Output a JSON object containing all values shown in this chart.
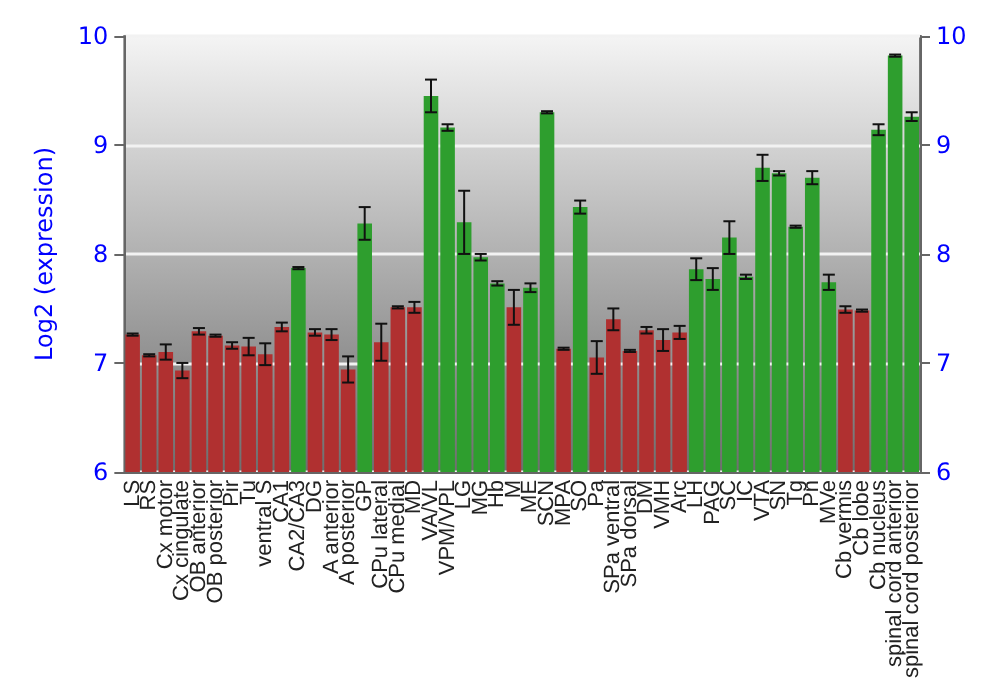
{
  "chart_data": {
    "type": "bar",
    "ylabel": "Log2 (expression)",
    "categories": [
      "LS",
      "RS",
      "Cx motor",
      "Cx cingulate",
      "OB anterior",
      "OB posterior",
      "Pir",
      "Tu",
      "ventral S",
      "CA1",
      "CA2/CA3",
      "DG",
      "A anterior",
      "A posterior",
      "GP",
      "CPu lateral",
      "CPu medial",
      "MD",
      "VA/VL",
      "VPM/VPL",
      "LG",
      "MG",
      "Hb",
      "M",
      "ME",
      "SCN",
      "MPA",
      "SO",
      "Pa",
      "SPa ventral",
      "SPa dorsal",
      "DM",
      "VMH",
      "Arc",
      "LH",
      "PAG",
      "SC",
      "IC",
      "VTA",
      "SN",
      "Tg",
      "Pn",
      "MVe",
      "Cb vermis",
      "Cb lobe",
      "Cb nucleus",
      "spinal cord anterior",
      "spinal cord posterior"
    ],
    "values": [
      7.26,
      7.07,
      7.1,
      6.93,
      7.29,
      7.25,
      7.16,
      7.15,
      7.08,
      7.33,
      7.87,
      7.28,
      7.26,
      6.94,
      8.28,
      7.19,
      7.51,
      7.51,
      9.45,
      9.16,
      8.29,
      7.97,
      7.73,
      7.51,
      7.69,
      9.3,
      7.13,
      8.43,
      7.05,
      7.4,
      7.11,
      7.3,
      7.21,
      7.28,
      7.86,
      7.77,
      8.15,
      7.79,
      8.79,
      8.74,
      8.25,
      8.7,
      7.74,
      7.49,
      7.48,
      9.14,
      9.82,
      9.26
    ],
    "errors": [
      0.01,
      0.01,
      0.07,
      0.07,
      0.03,
      0.01,
      0.03,
      0.08,
      0.1,
      0.04,
      0.01,
      0.03,
      0.05,
      0.12,
      0.15,
      0.17,
      0.01,
      0.05,
      0.15,
      0.03,
      0.29,
      0.03,
      0.02,
      0.16,
      0.04,
      0.01,
      0.01,
      0.06,
      0.15,
      0.1,
      0.01,
      0.03,
      0.1,
      0.06,
      0.1,
      0.1,
      0.15,
      0.02,
      0.12,
      0.02,
      0.01,
      0.06,
      0.07,
      0.03,
      0.01,
      0.05,
      0.01,
      0.04
    ],
    "colors": [
      "#b03030",
      "#b03030",
      "#b03030",
      "#b03030",
      "#b03030",
      "#b03030",
      "#b03030",
      "#b03030",
      "#b03030",
      "#b03030",
      "#2e9e2e",
      "#b03030",
      "#b03030",
      "#b03030",
      "#2e9e2e",
      "#b03030",
      "#b03030",
      "#b03030",
      "#2e9e2e",
      "#2e9e2e",
      "#2e9e2e",
      "#2e9e2e",
      "#2e9e2e",
      "#b03030",
      "#2e9e2e",
      "#2e9e2e",
      "#b03030",
      "#2e9e2e",
      "#b03030",
      "#b03030",
      "#b03030",
      "#b03030",
      "#b03030",
      "#b03030",
      "#2e9e2e",
      "#2e9e2e",
      "#2e9e2e",
      "#2e9e2e",
      "#2e9e2e",
      "#2e9e2e",
      "#2e9e2e",
      "#2e9e2e",
      "#2e9e2e",
      "#b03030",
      "#b03030",
      "#2e9e2e",
      "#2e9e2e",
      "#2e9e2e"
    ],
    "ylim": [
      6,
      10
    ],
    "yticks": [
      6,
      7,
      8,
      9,
      10
    ],
    "y2lim": [
      6,
      10
    ],
    "y2ticks": [
      6,
      7,
      8,
      9,
      10
    ],
    "grid": "y"
  }
}
